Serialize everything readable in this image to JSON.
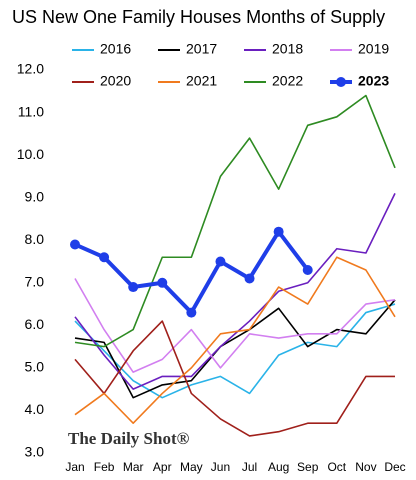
{
  "chart_data": {
    "type": "line",
    "title": "US New One Family Houses Months of Supply",
    "watermark": "The Daily Shot®",
    "categories": [
      "Jan",
      "Feb",
      "Mar",
      "Apr",
      "May",
      "Jun",
      "Jul",
      "Aug",
      "Sep",
      "Oct",
      "Nov",
      "Dec"
    ],
    "ylim": [
      3,
      12
    ],
    "yticks": [
      {
        "value": 3,
        "label": "3.0"
      },
      {
        "value": 4,
        "label": "4.0"
      },
      {
        "value": 5,
        "label": "5.0"
      },
      {
        "value": 6,
        "label": "6.0"
      },
      {
        "value": 7,
        "label": "7.0"
      },
      {
        "value": 8,
        "label": "8.0"
      },
      {
        "value": 9,
        "label": "9.0"
      },
      {
        "value": 10,
        "label": "10.0"
      },
      {
        "value": 11,
        "label": "11.0"
      },
      {
        "value": 12,
        "label": "12.0"
      }
    ],
    "grid": false,
    "series": [
      {
        "name": "2016",
        "color": "#2ab3e8",
        "values": [
          6.1,
          5.4,
          4.7,
          4.3,
          4.6,
          4.8,
          4.4,
          5.3,
          5.6,
          5.5,
          6.3,
          6.5
        ]
      },
      {
        "name": "2017",
        "color": "#000000",
        "values": [
          5.7,
          5.6,
          4.3,
          4.6,
          4.7,
          5.5,
          5.9,
          6.4,
          5.5,
          5.9,
          5.8,
          6.6
        ]
      },
      {
        "name": "2018",
        "color": "#6a1fbf",
        "values": [
          6.2,
          5.3,
          4.5,
          4.8,
          4.8,
          5.5,
          6.1,
          6.8,
          7.0,
          7.8,
          7.7,
          9.1
        ]
      },
      {
        "name": "2019",
        "color": "#d27ff0",
        "values": [
          7.1,
          5.9,
          4.9,
          5.2,
          5.9,
          5.0,
          5.8,
          5.7,
          5.8,
          5.8,
          6.5,
          6.6
        ]
      },
      {
        "name": "2020",
        "color": "#a0201b",
        "values": [
          5.2,
          4.4,
          5.4,
          6.1,
          4.4,
          3.8,
          3.4,
          3.5,
          3.7,
          3.7,
          4.8,
          4.8
        ]
      },
      {
        "name": "2021",
        "color": "#f07a1e",
        "values": [
          3.9,
          4.4,
          3.7,
          4.4,
          5.0,
          5.8,
          5.9,
          6.9,
          6.5,
          7.6,
          7.3,
          6.2
        ]
      },
      {
        "name": "2022",
        "color": "#2e8b22",
        "values": [
          5.6,
          5.5,
          5.9,
          7.6,
          7.6,
          9.5,
          10.4,
          9.2,
          10.7,
          10.9,
          11.4,
          9.7
        ]
      },
      {
        "name": "2023",
        "color": "#1f3ee8",
        "highlight": true,
        "values": [
          7.9,
          7.6,
          6.9,
          7.0,
          6.3,
          7.5,
          7.1,
          8.2,
          7.3,
          null,
          null,
          null
        ]
      }
    ]
  }
}
